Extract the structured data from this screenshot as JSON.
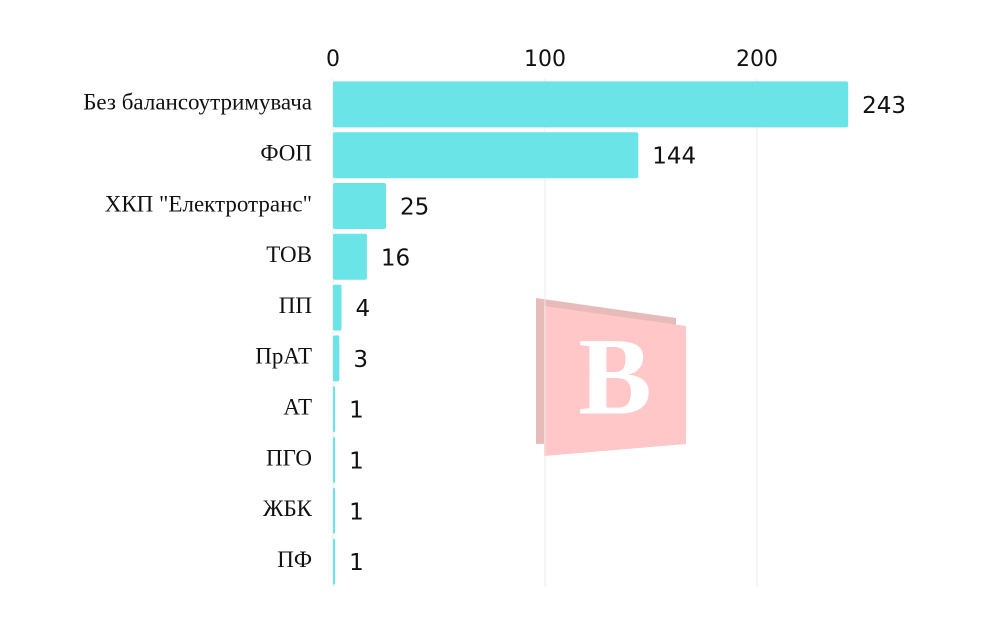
{
  "chart_data": {
    "type": "bar",
    "orientation": "horizontal",
    "categories": [
      "Без балансоутримувача",
      "ФОП",
      "ХКП \"Електротранс\"",
      "ТОВ",
      "ПП",
      "ПрАТ",
      "АТ",
      "ПГО",
      "ЖБК",
      "ПФ"
    ],
    "values": [
      243,
      144,
      25,
      16,
      4,
      3,
      1,
      1,
      1,
      1
    ],
    "color": "#6ae4e6",
    "xlim": [
      0,
      300
    ],
    "xticks": [
      0,
      100,
      200
    ],
    "grid": true
  }
}
